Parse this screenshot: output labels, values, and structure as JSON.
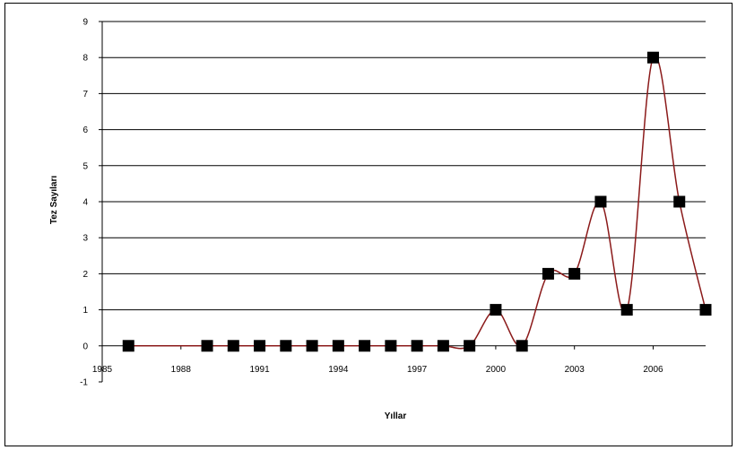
{
  "chart_data": {
    "type": "line",
    "title": "",
    "xlabel": "Yıllar",
    "ylabel": "Tez Sayıları",
    "xlim": [
      1985,
      2008
    ],
    "ylim": [
      -1,
      9
    ],
    "x_ticks": [
      1985,
      1988,
      1991,
      1994,
      1997,
      2000,
      2003,
      2006
    ],
    "y_ticks": [
      -1,
      0,
      1,
      2,
      3,
      4,
      5,
      6,
      7,
      8,
      9
    ],
    "grid": true,
    "legend": "none",
    "colors": {
      "line": "#8B1A1A",
      "marker": "#000000",
      "grid": "#000000"
    },
    "series": [
      {
        "x": [
          1986,
          1989,
          1990,
          1991,
          1992,
          1993,
          1994,
          1995,
          1996,
          1997,
          1998,
          1999,
          2000,
          2001,
          2002,
          2003,
          2004,
          2005,
          2006,
          2007,
          2008
        ],
        "values": [
          0,
          0,
          0,
          0,
          0,
          0,
          0,
          0,
          0,
          0,
          0,
          0,
          1,
          0,
          2,
          2,
          4,
          1,
          8,
          4,
          1
        ]
      }
    ]
  }
}
